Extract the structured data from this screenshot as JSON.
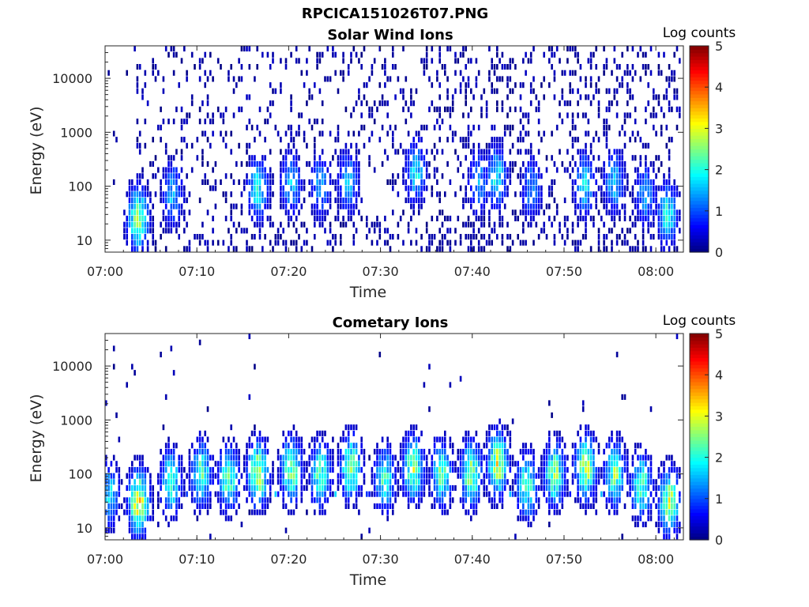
{
  "figure": {
    "title": "RPCICA151026T07.PNG"
  },
  "chart_data": [
    {
      "type": "heatmap",
      "title": "Solar Wind Ions",
      "xlabel": "Time",
      "ylabel": "Energy (eV)",
      "x_tick_labels": [
        "07:00",
        "07:10",
        "07:20",
        "07:30",
        "07:40",
        "07:50",
        "08:00"
      ],
      "x_ticks_minutes": [
        0,
        10,
        20,
        30,
        40,
        50,
        60
      ],
      "xlim_minutes": [
        0,
        63
      ],
      "y_scale": "log",
      "y_tick_labels": [
        "10",
        "100",
        "1000",
        "10000"
      ],
      "y_ticks": [
        10,
        100,
        1000,
        10000
      ],
      "ylim": [
        6,
        40000
      ],
      "colorbar": {
        "label": "Log counts",
        "ticks": [
          "0",
          "1",
          "2",
          "3",
          "4",
          "5"
        ],
        "range": [
          0,
          5
        ],
        "colormap": "jet"
      },
      "background_level": 0.35,
      "bursts": [
        {
          "t": 3.6,
          "e": 25,
          "level": 2.7
        },
        {
          "t": 7.4,
          "e": 70,
          "level": 1.6
        },
        {
          "t": 16.7,
          "e": 90,
          "level": 1.9
        },
        {
          "t": 20.3,
          "e": 110,
          "level": 1.6
        },
        {
          "t": 23.5,
          "e": 100,
          "level": 1.5
        },
        {
          "t": 26.5,
          "e": 120,
          "level": 1.6
        },
        {
          "t": 33.9,
          "e": 180,
          "level": 1.8
        },
        {
          "t": 40.7,
          "e": 120,
          "level": 1.5
        },
        {
          "t": 42.7,
          "e": 150,
          "level": 1.9
        },
        {
          "t": 46.5,
          "e": 90,
          "level": 1.4
        },
        {
          "t": 52.3,
          "e": 110,
          "level": 1.8
        },
        {
          "t": 55.5,
          "e": 120,
          "level": 1.7
        },
        {
          "t": 58.9,
          "e": 70,
          "level": 1.5
        },
        {
          "t": 61.3,
          "e": 30,
          "level": 2.0
        }
      ]
    },
    {
      "type": "heatmap",
      "title": "Cometary Ions",
      "xlabel": "Time",
      "ylabel": "Energy (eV)",
      "x_tick_labels": [
        "07:00",
        "07:10",
        "07:20",
        "07:30",
        "07:40",
        "07:50",
        "08:00"
      ],
      "x_ticks_minutes": [
        0,
        10,
        20,
        30,
        40,
        50,
        60
      ],
      "xlim_minutes": [
        0,
        63
      ],
      "y_scale": "log",
      "y_tick_labels": [
        "10",
        "100",
        "1000",
        "10000"
      ],
      "y_ticks": [
        10,
        100,
        1000,
        10000
      ],
      "ylim": [
        6,
        40000
      ],
      "colorbar": {
        "label": "Log counts",
        "ticks": [
          "0",
          "1",
          "2",
          "3",
          "4",
          "5"
        ],
        "range": [
          0,
          5
        ],
        "colormap": "jet"
      },
      "baseline_energy": 42,
      "background_level": 0.1,
      "bursts": [
        {
          "t": 0.5,
          "e": 40,
          "level": 1.8
        },
        {
          "t": 3.7,
          "e": 30,
          "level": 3.2
        },
        {
          "t": 7.2,
          "e": 70,
          "level": 2.3
        },
        {
          "t": 10.5,
          "e": 100,
          "level": 2.4
        },
        {
          "t": 13.5,
          "e": 80,
          "level": 2.4
        },
        {
          "t": 16.7,
          "e": 100,
          "level": 3.0
        },
        {
          "t": 20.3,
          "e": 120,
          "level": 2.7
        },
        {
          "t": 23.5,
          "e": 100,
          "level": 2.4
        },
        {
          "t": 26.8,
          "e": 130,
          "level": 2.7
        },
        {
          "t": 30.5,
          "e": 80,
          "level": 2.2
        },
        {
          "t": 33.6,
          "e": 130,
          "level": 2.7
        },
        {
          "t": 36.7,
          "e": 100,
          "level": 2.4
        },
        {
          "t": 39.9,
          "e": 100,
          "level": 2.7
        },
        {
          "t": 42.8,
          "e": 150,
          "level": 3.0
        },
        {
          "t": 46.0,
          "e": 60,
          "level": 2.3
        },
        {
          "t": 49.0,
          "e": 100,
          "level": 2.6
        },
        {
          "t": 52.4,
          "e": 130,
          "level": 2.9
        },
        {
          "t": 55.6,
          "e": 100,
          "level": 2.5
        },
        {
          "t": 58.5,
          "e": 60,
          "level": 2.4
        },
        {
          "t": 61.5,
          "e": 30,
          "level": 2.9
        }
      ]
    }
  ]
}
